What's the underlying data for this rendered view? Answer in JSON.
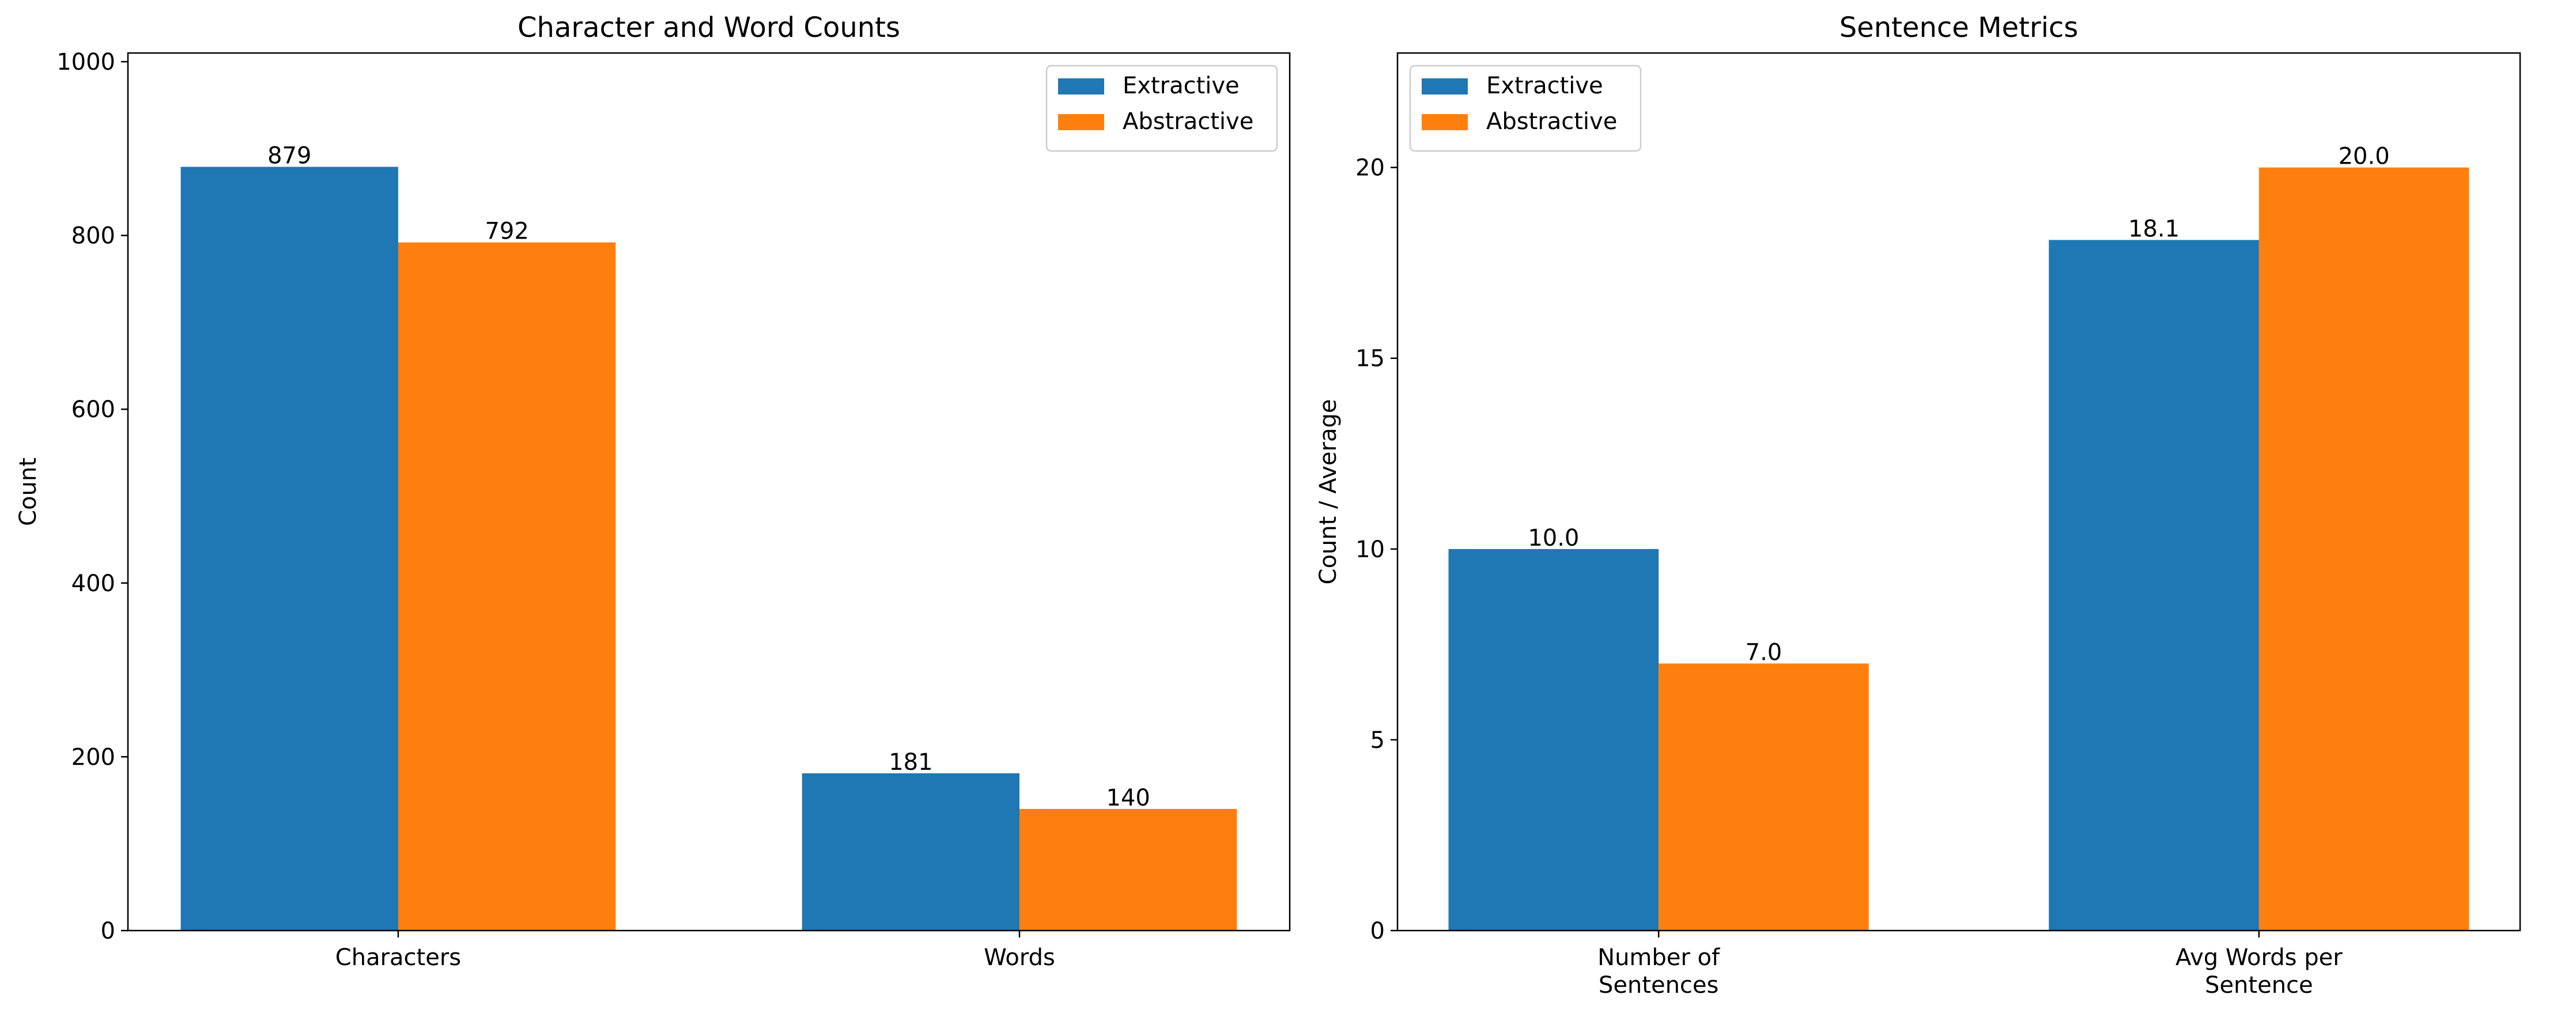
{
  "colors": {
    "Extractive": "#1f77b4",
    "Abstractive": "#ff7f0e",
    "axis": "#000000",
    "background": "#ffffff"
  },
  "chart_data": [
    {
      "type": "bar",
      "title": "Character and Word Counts",
      "xlabel": "",
      "ylabel": "Count",
      "categories": [
        [
          "Characters"
        ],
        [
          "Words"
        ]
      ],
      "series": [
        {
          "name": "Extractive",
          "values": [
            879,
            181
          ],
          "labels": [
            "879",
            "181"
          ]
        },
        {
          "name": "Abstractive",
          "values": [
            792,
            140
          ],
          "labels": [
            "792",
            "140"
          ]
        }
      ],
      "ylim": [
        0,
        1010
      ],
      "yticks": [
        0,
        200,
        400,
        600,
        800,
        1000
      ],
      "grid": false,
      "legend": "upper right"
    },
    {
      "type": "bar",
      "title": "Sentence Metrics",
      "xlabel": "",
      "ylabel": "Count / Average",
      "categories": [
        [
          "Number of",
          "Sentences"
        ],
        [
          "Avg Words per",
          "Sentence"
        ]
      ],
      "series": [
        {
          "name": "Extractive",
          "values": [
            10.0,
            18.1
          ],
          "labels": [
            "10.0",
            "18.1"
          ]
        },
        {
          "name": "Abstractive",
          "values": [
            7.0,
            20.0
          ],
          "labels": [
            "7.0",
            "20.0"
          ]
        }
      ],
      "ylim": [
        0,
        23
      ],
      "yticks": [
        0,
        5,
        10,
        15,
        20
      ],
      "grid": false,
      "legend": "upper left"
    }
  ]
}
